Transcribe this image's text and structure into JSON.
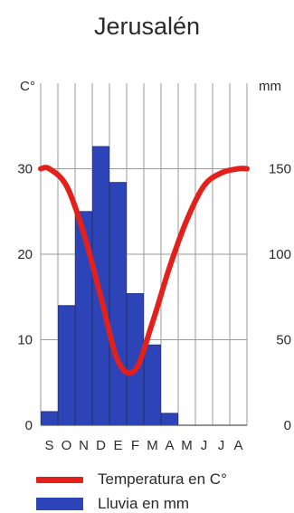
{
  "chart_data": {
    "type": "bar+line",
    "title": "Jerusalén",
    "categories": [
      "S",
      "O",
      "N",
      "D",
      "E",
      "F",
      "M",
      "A",
      "M",
      "J",
      "J",
      "A"
    ],
    "left_axis": {
      "label": "C°",
      "ticks": [
        0,
        10,
        20,
        30
      ],
      "range": [
        0,
        40
      ]
    },
    "right_axis": {
      "label": "mm",
      "ticks": [
        0,
        50,
        100,
        150
      ],
      "range": [
        0,
        200
      ]
    },
    "series": [
      {
        "name": "Temperatura en C°",
        "type": "line",
        "axis": "left",
        "color": "#e3211c",
        "values": [
          30,
          28,
          22.5,
          15,
          7.5,
          6.5,
          12,
          18.5,
          24,
          28,
          29.5,
          30
        ]
      },
      {
        "name": "Lluvia en mm",
        "type": "bar",
        "axis": "right",
        "color": "#2c44b8",
        "values": [
          8,
          70,
          125,
          163,
          142,
          77,
          47,
          7,
          0,
          0,
          0,
          0
        ]
      }
    ],
    "grid": true
  }
}
